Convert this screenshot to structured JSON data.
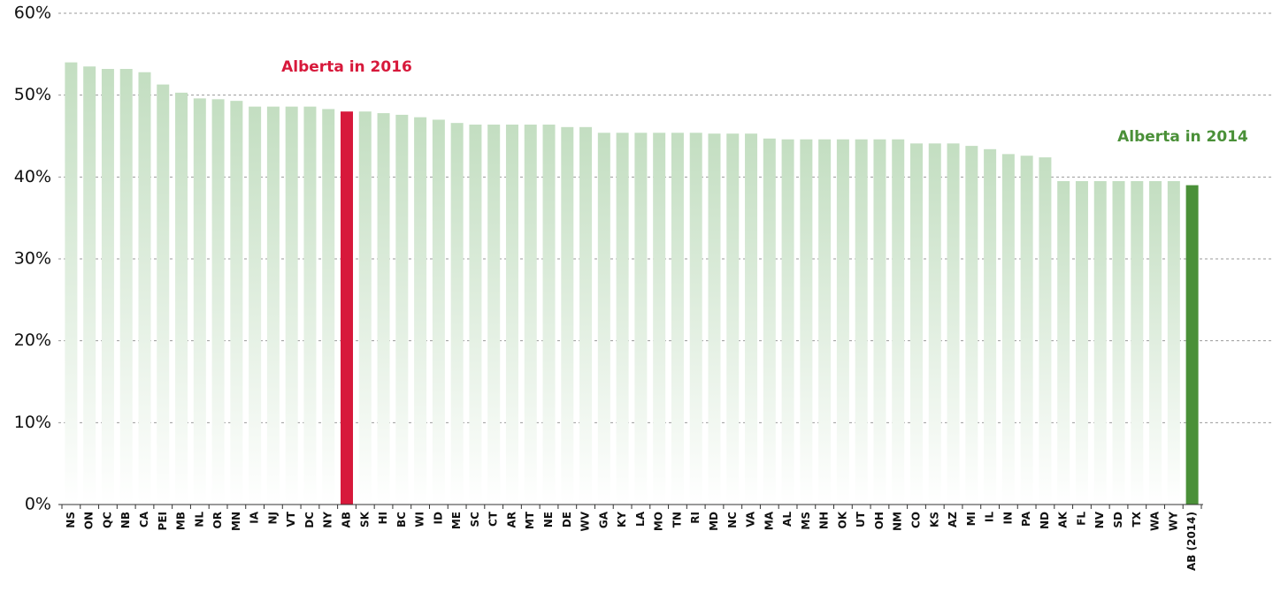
{
  "chart_data": {
    "type": "bar",
    "categories": [
      "NS",
      "ON",
      "QC",
      "NB",
      "CA",
      "PEI",
      "MB",
      "NL",
      "OR",
      "MN",
      "IA",
      "NJ",
      "VT",
      "DC",
      "NY",
      "AB",
      "SK",
      "HI",
      "BC",
      "WI",
      "ID",
      "ME",
      "SC",
      "CT",
      "AR",
      "MT",
      "NE",
      "DE",
      "WV",
      "GA",
      "KY",
      "LA",
      "MO",
      "TN",
      "RI",
      "MD",
      "NC",
      "VA",
      "MA",
      "AL",
      "MS",
      "NH",
      "OK",
      "UT",
      "OH",
      "NM",
      "CO",
      "KS",
      "AZ",
      "MI",
      "IL",
      "IN",
      "PA",
      "ND",
      "AK",
      "FL",
      "NV",
      "SD",
      "TX",
      "WA",
      "WY",
      "AB (2014)"
    ],
    "values": [
      54,
      53.5,
      53.2,
      53.2,
      52.8,
      51.3,
      50.3,
      49.6,
      49.5,
      49.3,
      48.6,
      48.6,
      48.6,
      48.6,
      48.3,
      48,
      48,
      47.8,
      47.6,
      47.3,
      47,
      46.6,
      46.4,
      46.4,
      46.4,
      46.4,
      46.4,
      46.1,
      46.1,
      45.4,
      45.4,
      45.4,
      45.4,
      45.4,
      45.4,
      45.3,
      45.3,
      45.3,
      44.7,
      44.6,
      44.6,
      44.6,
      44.6,
      44.6,
      44.6,
      44.6,
      44.1,
      44.1,
      44.1,
      43.8,
      43.4,
      42.8,
      42.6,
      42.4,
      39.5,
      39.5,
      39.5,
      39.5,
      39.5,
      39.5,
      39.5,
      39
    ],
    "color": "#c3dec1",
    "gradient": true,
    "colors": [
      "#c3dec1",
      "#c3dec1",
      "#c3dec1",
      "#c3dec1",
      "#c3dec1",
      "#c3dec1",
      "#c3dec1",
      "#c3dec1",
      "#c3dec1",
      "#c3dec1",
      "#c3dec1",
      "#c3dec1",
      "#c3dec1",
      "#c3dec1",
      "#c3dec1",
      "#d7193b",
      "#c3dec1",
      "#c3dec1",
      "#c3dec1",
      "#c3dec1",
      "#c3dec1",
      "#c3dec1",
      "#c3dec1",
      "#c3dec1",
      "#c3dec1",
      "#c3dec1",
      "#c3dec1",
      "#c3dec1",
      "#c3dec1",
      "#c3dec1",
      "#c3dec1",
      "#c3dec1",
      "#c3dec1",
      "#c3dec1",
      "#c3dec1",
      "#c3dec1",
      "#c3dec1",
      "#c3dec1",
      "#c3dec1",
      "#c3dec1",
      "#c3dec1",
      "#c3dec1",
      "#c3dec1",
      "#c3dec1",
      "#c3dec1",
      "#c3dec1",
      "#c3dec1",
      "#c3dec1",
      "#c3dec1",
      "#c3dec1",
      "#c3dec1",
      "#c3dec1",
      "#c3dec1",
      "#c3dec1",
      "#c3dec1",
      "#c3dec1",
      "#c3dec1",
      "#c3dec1",
      "#c3dec1",
      "#c3dec1",
      "#c3dec1",
      "#4a9038"
    ],
    "ylim": [
      0,
      60
    ],
    "yticks": [
      {
        "value": 0,
        "label": "0%"
      },
      {
        "value": 10,
        "label": "10%"
      },
      {
        "value": 20,
        "label": "20%"
      },
      {
        "value": 30,
        "label": "30%"
      },
      {
        "value": 40,
        "label": "40%"
      },
      {
        "value": 50,
        "label": "50%"
      },
      {
        "value": 60,
        "label": "60%"
      }
    ],
    "grid": true,
    "annotations": [
      {
        "text": "Alberta in 2016",
        "color": "#d7193b"
      },
      {
        "text": "Alberta in 2014",
        "color": "#4a9038"
      }
    ]
  }
}
